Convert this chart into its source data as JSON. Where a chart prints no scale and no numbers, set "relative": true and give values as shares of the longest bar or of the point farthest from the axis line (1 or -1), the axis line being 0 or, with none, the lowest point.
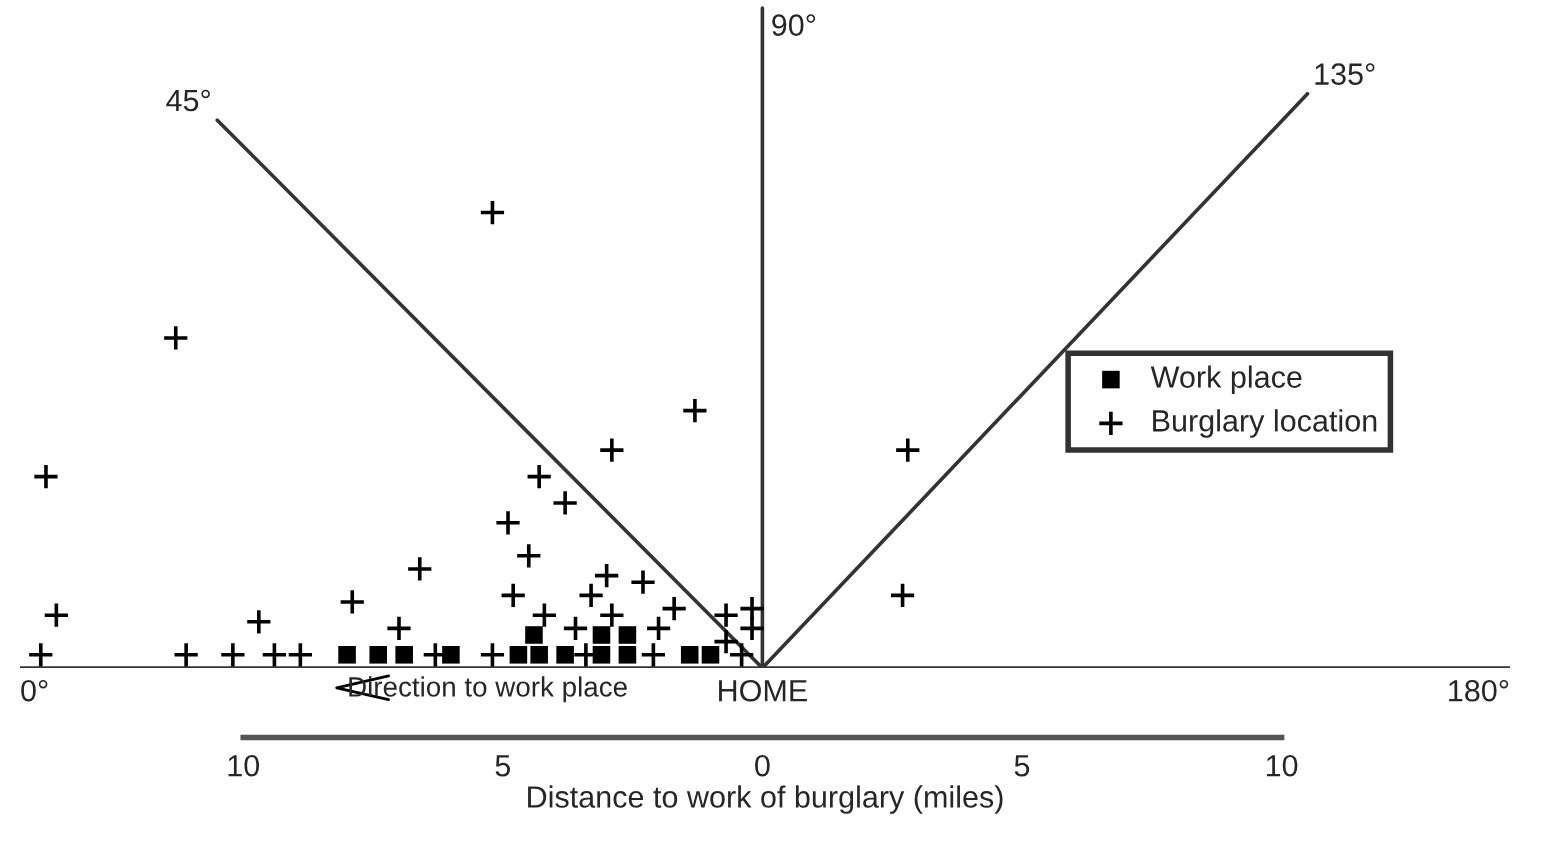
{
  "chart_data": {
    "type": "scatter",
    "xlabel": "Distance to work of burglary (miles)",
    "relative": true,
    "xlim": [
      -14.3,
      14.4
    ],
    "xticks": [
      {
        "value": -10,
        "label": "10"
      },
      {
        "value": -5,
        "label": "5"
      },
      0,
      {
        "value": 5,
        "label": "5"
      },
      {
        "value": 10,
        "label": "10"
      }
    ],
    "tick_labels": "x",
    "grid": false,
    "legend": "center right",
    "series": [
      {
        "name": "Work place",
        "marker": "square",
        "color": "#000000",
        "x": [
          -8.0,
          -7.4,
          -6.9,
          -6.0,
          -4.7,
          -4.4,
          -4.3,
          -3.8,
          -3.1,
          -3.1,
          -2.6,
          -2.6,
          -1.4,
          -1.0
        ],
        "values": [
          0.02,
          0.02,
          0.02,
          0.02,
          0.02,
          0.05,
          0.02,
          0.02,
          0.02,
          0.05,
          0.02,
          0.05,
          0.02,
          0.02
        ]
      },
      {
        "name": "Burglary location",
        "marker": "cross",
        "color": "#000000",
        "x": [
          -11.3,
          -13.8,
          -13.6,
          -13.9,
          -11.1,
          -10.2,
          -9.4,
          -8.9,
          -9.7,
          -7.9,
          -7.0,
          -6.6,
          -6.3,
          -5.2,
          -5.2,
          -4.9,
          -4.8,
          -4.5,
          -4.3,
          -4.2,
          -3.8,
          -3.6,
          -3.4,
          -3.3,
          -3.0,
          -2.9,
          -2.9,
          -2.3,
          -2.1,
          -2.0,
          -1.7,
          -1.3,
          -0.7,
          -0.7,
          -0.4,
          -0.2,
          -0.2,
          2.8,
          2.7
        ],
        "values": [
          0.5,
          0.29,
          0.08,
          0.02,
          0.02,
          0.02,
          0.02,
          0.02,
          0.07,
          0.1,
          0.06,
          0.15,
          0.02,
          0.02,
          0.69,
          0.22,
          0.11,
          0.17,
          0.29,
          0.08,
          0.25,
          0.06,
          0.02,
          0.11,
          0.14,
          0.33,
          0.08,
          0.13,
          0.02,
          0.06,
          0.09,
          0.39,
          0.08,
          0.04,
          0.02,
          0.09,
          0.06,
          0.33,
          0.11
        ]
      },
      {
        "type": "line",
        "color": "#333333",
        "x": [
          -14.3,
          14.4
        ],
        "values": [
          0,
          0
        ]
      },
      {
        "type": "line",
        "color": "#333333",
        "x": [
          0,
          -10.5
        ],
        "values": [
          0,
          0.83
        ]
      },
      {
        "type": "line",
        "color": "#333333",
        "x": [
          0,
          0
        ],
        "values": [
          0,
          1
        ]
      },
      {
        "type": "line",
        "color": "#333333",
        "x": [
          0,
          10.5
        ],
        "values": [
          0,
          0.87
        ]
      }
    ],
    "annotations": [
      {
        "text": "0°",
        "x": -14.3,
        "y": 0
      },
      {
        "text": "45°",
        "x": -10.5,
        "y": 0.83
      },
      {
        "text": "90°",
        "x": 0,
        "y": 1
      },
      {
        "text": "135°",
        "x": 10.5,
        "y": 0.87
      },
      {
        "text": "180°",
        "x": 14.4,
        "y": 0
      },
      {
        "text": "HOME",
        "x": 0,
        "y": 0
      },
      "Direction to work place"
    ]
  }
}
